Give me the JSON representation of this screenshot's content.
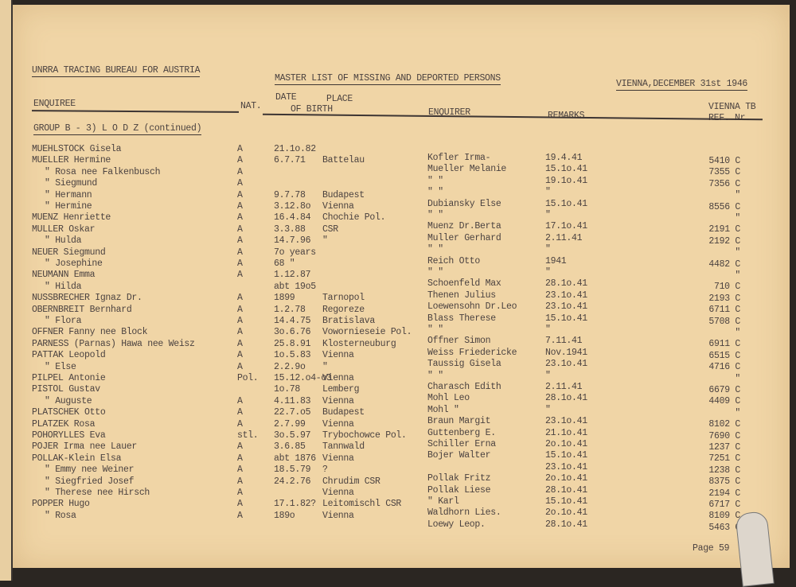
{
  "header": {
    "bureau": "UNRRA TRACING BUREAU FOR AUSTRIA",
    "title": "MASTER LIST OF MISSING AND DEPORTED PERSONS",
    "date": "VIENNA,DECEMBER 31st 1946"
  },
  "columns": {
    "enquiree": "ENQUIREE",
    "nat": "NAT.",
    "date": "DATE",
    "place": "PLACE",
    "of_birth": "OF BIRTH",
    "enquirer": "ENQUIRER",
    "remarks": "REMARKS",
    "ref1": "VIENNA TB",
    "ref2": "REF. Nr."
  },
  "group": "GROUP B - 3) L O D Z  (continued)",
  "enquirees": [
    {
      "name": "MUEHLSTOCK Gisela",
      "indent": 0,
      "nat": "A",
      "date": "21.1o.82",
      "place": ""
    },
    {
      "name": "MUELLER Hermine",
      "indent": 0,
      "nat": "A",
      "date": "6.7.71",
      "place": "Battelau"
    },
    {
      "name": "\"    Rosa nee Falkenbusch",
      "indent": 1,
      "nat": "A",
      "date": "",
      "place": ""
    },
    {
      "name": "\"    Siegmund",
      "indent": 1,
      "nat": "A",
      "date": "",
      "place": ""
    },
    {
      "name": "\"    Hermann",
      "indent": 1,
      "nat": "A",
      "date": "9.7.78",
      "place": "Budapest"
    },
    {
      "name": "\"    Hermine",
      "indent": 1,
      "nat": "A",
      "date": "3.12.8o",
      "place": "Vienna"
    },
    {
      "name": "MUENZ Henriette",
      "indent": 0,
      "nat": "A",
      "date": "16.4.84",
      "place": "Chochie Pol."
    },
    {
      "name": "MULLER Oskar",
      "indent": 0,
      "nat": "A",
      "date": "3.3.88",
      "place": "CSR"
    },
    {
      "name": "\"   Hulda",
      "indent": 1,
      "nat": "A",
      "date": "14.7.96",
      "place": "\""
    },
    {
      "name": "NEUER Siegmund",
      "indent": 0,
      "nat": "A",
      "date": "7o years",
      "place": ""
    },
    {
      "name": "\"  Josephine",
      "indent": 1,
      "nat": "A",
      "date": "68 \"",
      "place": ""
    },
    {
      "name": "NEUMANN Emma",
      "indent": 0,
      "nat": "A",
      "date": "1.12.87",
      "place": ""
    },
    {
      "name": "\"    Hilda",
      "indent": 1,
      "nat": "",
      "date": "abt 19o5",
      "place": ""
    },
    {
      "name": "NUSSBRECHER Ignaz Dr.",
      "indent": 0,
      "nat": "A",
      "date": "1899",
      "place": "Tarnopol"
    },
    {
      "name": "OBERNBREIT Bernhard",
      "indent": 0,
      "nat": "A",
      "date": "1.2.78",
      "place": "Regoreze"
    },
    {
      "name": "\"      Flora",
      "indent": 1,
      "nat": "A",
      "date": "14.4.75",
      "place": "Bratislava"
    },
    {
      "name": "OFFNER Fanny nee Block",
      "indent": 0,
      "nat": "A",
      "date": "3o.6.76",
      "place": "Vowornieseie Pol."
    },
    {
      "name": "PARNESS (Parnas) Hawa nee Weisz",
      "indent": 0,
      "nat": "A",
      "date": "25.8.91",
      "place": "Klosterneuburg"
    },
    {
      "name": "PATTAK Leopold",
      "indent": 0,
      "nat": "A",
      "date": "1o.5.83",
      "place": "Vienna"
    },
    {
      "name": "\"   Else",
      "indent": 1,
      "nat": "A",
      "date": "2.2.9o",
      "place": "\""
    },
    {
      "name": "PILPEL Antonie",
      "indent": 0,
      "nat": "Pol.",
      "date": "15.12.o4-o3",
      "place": "Vienna"
    },
    {
      "name": "PISTOL Gustav",
      "indent": 0,
      "nat": "",
      "date": "1o.78",
      "place": "Lemberg"
    },
    {
      "name": "\"    Auguste",
      "indent": 1,
      "nat": "A",
      "date": "4.11.83",
      "place": "Vienna"
    },
    {
      "name": "PLATSCHEK Otto",
      "indent": 0,
      "nat": "A",
      "date": "22.7.o5",
      "place": "Budapest"
    },
    {
      "name": "PLATZEK Rosa",
      "indent": 0,
      "nat": "A",
      "date": "2.7.99",
      "place": "Vienna"
    },
    {
      "name": "POHORYLLES Eva",
      "indent": 0,
      "nat": "stl.",
      "date": "3o.5.97",
      "place": "Trybochowce Pol."
    },
    {
      "name": "POJER Irma nee Lauer",
      "indent": 0,
      "nat": "A",
      "date": "3.6.85",
      "place": "Tannwald"
    },
    {
      "name": "POLLAK-Klein Elsa",
      "indent": 0,
      "nat": "A",
      "date": "abt 1876",
      "place": "Vienna"
    },
    {
      "name": "\"   Emmy nee Weiner",
      "indent": 1,
      "nat": "A",
      "date": "18.5.79",
      "place": "?"
    },
    {
      "name": "\"   Siegfried Josef",
      "indent": 1,
      "nat": "A",
      "date": "24.2.76",
      "place": "Chrudim CSR"
    },
    {
      "name": "\"   Therese nee Hirsch",
      "indent": 1,
      "nat": "A",
      "date": "",
      "place": "Vienna"
    },
    {
      "name": "POPPER Hugo",
      "indent": 0,
      "nat": "A",
      "date": "17.1.82?",
      "place": "Leitomischl CSR"
    },
    {
      "name": "\"   Rosa",
      "indent": 1,
      "nat": "A",
      "date": "189o",
      "place": "Vienna"
    }
  ],
  "enquirers": [
    {
      "enquirer": "Kofler Irma-",
      "remarks": "19.4.41",
      "ref": "5410 C"
    },
    {
      "enquirer": "Mueller Melanie",
      "remarks": "15.1o.41",
      "ref": "7355 C"
    },
    {
      "enquirer": "\"        \"",
      "remarks": "19.1o.41",
      "ref": "7356 C"
    },
    {
      "enquirer": "\"        \"",
      "remarks": "\"",
      "ref": "\""
    },
    {
      "enquirer": "Dubiansky Else",
      "remarks": "15.1o.41",
      "ref": "8556 C"
    },
    {
      "enquirer": "\"        \"",
      "remarks": "\"",
      "ref": "\""
    },
    {
      "enquirer": "Muenz Dr.Berta",
      "remarks": "17.1o.41",
      "ref": "2191 C"
    },
    {
      "enquirer": "Muller Gerhard",
      "remarks": "2.11.41",
      "ref": "2192 C"
    },
    {
      "enquirer": "\"        \"",
      "remarks": "\"",
      "ref": "\""
    },
    {
      "enquirer": "Reich Otto",
      "remarks": "1941",
      "ref": "4482 C"
    },
    {
      "enquirer": "\"        \"",
      "remarks": "\"",
      "ref": "\""
    },
    {
      "enquirer": "Schoenfeld Max",
      "remarks": "28.1o.41",
      "ref": "710 C"
    },
    {
      "enquirer": "Thenen Julius",
      "remarks": "23.1o.41",
      "ref": "2193 C"
    },
    {
      "enquirer": "Loewensohn Dr.Leo",
      "remarks": "23.1o.41",
      "ref": "6711 C"
    },
    {
      "enquirer": "Blass Therese",
      "remarks": "15.1o.41",
      "ref": "5708 C"
    },
    {
      "enquirer": "\"        \"",
      "remarks": "\"",
      "ref": "\""
    },
    {
      "enquirer": "Offner Simon",
      "remarks": "7.11.41",
      "ref": "6911 C"
    },
    {
      "enquirer": "Weiss Friedericke",
      "remarks": "Nov.1941",
      "ref": "6515 C"
    },
    {
      "enquirer": "Taussig Gisela",
      "remarks": "23.1o.41",
      "ref": "4716 C"
    },
    {
      "enquirer": "\"        \"",
      "remarks": "\"",
      "ref": "\""
    },
    {
      "enquirer": "Charasch Edith",
      "remarks": "2.11.41",
      "ref": "6679 C"
    },
    {
      "enquirer": "Mohl Leo",
      "remarks": "28.1o.41",
      "ref": "4409 C"
    },
    {
      "enquirer": "Mohl  \"",
      "remarks": "\"",
      "ref": "\""
    },
    {
      "enquirer": "Braun Margit",
      "remarks": "23.1o.41",
      "ref": "8102 C"
    },
    {
      "enquirer": "Guttenberg E.",
      "remarks": "21.1o.41",
      "ref": "7690 C"
    },
    {
      "enquirer": "Schiller Erna",
      "remarks": "2o.1o.41",
      "ref": "1237 C"
    },
    {
      "enquirer": "Bojer Walter",
      "remarks": "15.1o.41",
      "ref": "7251 C"
    },
    {
      "enquirer": "",
      "remarks": "23.1o.41",
      "ref": "1238 C"
    },
    {
      "enquirer": "Pollak Fritz",
      "remarks": "2o.1o.41",
      "ref": "8375 C"
    },
    {
      "enquirer": "Pollak Liese",
      "remarks": "28.1o.41",
      "ref": "2194 C"
    },
    {
      "enquirer": "  \"    Karl",
      "remarks": "15.1o.41",
      "ref": "6717 C"
    },
    {
      "enquirer": "Waldhorn Lies.",
      "remarks": "2o.1o.41",
      "ref": "8109 C"
    },
    {
      "enquirer": "Loewy Leop.",
      "remarks": "28.1o.41",
      "ref": "5463 C"
    }
  ],
  "footer": {
    "page": "Page 59"
  }
}
